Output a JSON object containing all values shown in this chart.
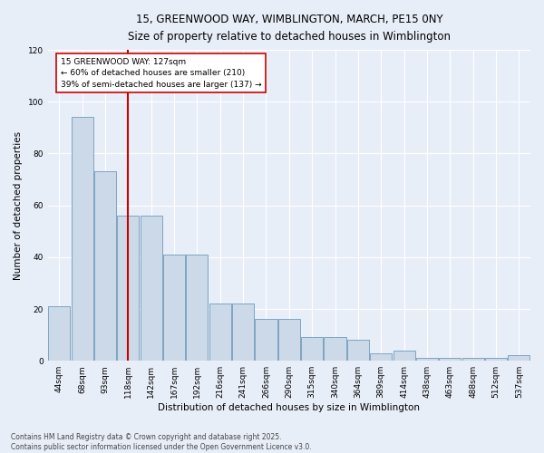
{
  "title_line1": "15, GREENWOOD WAY, WIMBLINGTON, MARCH, PE15 0NY",
  "title_line2": "Size of property relative to detached houses in Wimblington",
  "xlabel": "Distribution of detached houses by size in Wimblington",
  "ylabel": "Number of detached properties",
  "bar_color": "#ccd9e8",
  "bar_edge_color": "#7099bb",
  "categories": [
    "44sqm",
    "68sqm",
    "93sqm",
    "118sqm",
    "142sqm",
    "167sqm",
    "192sqm",
    "216sqm",
    "241sqm",
    "266sqm",
    "290sqm",
    "315sqm",
    "340sqm",
    "364sqm",
    "389sqm",
    "414sqm",
    "438sqm",
    "463sqm",
    "488sqm",
    "512sqm",
    "537sqm"
  ],
  "bar_heights": [
    21,
    94,
    73,
    56,
    56,
    41,
    41,
    22,
    22,
    16,
    16,
    9,
    9,
    8,
    3,
    4,
    1,
    1,
    1,
    1,
    2
  ],
  "ylim": [
    0,
    120
  ],
  "yticks": [
    0,
    20,
    40,
    60,
    80,
    100,
    120
  ],
  "property_line_color": "#cc0000",
  "annotation_text": "15 GREENWOOD WAY: 127sqm\n← 60% of detached houses are smaller (210)\n39% of semi-detached houses are larger (137) →",
  "footer_text": "Contains HM Land Registry data © Crown copyright and database right 2025.\nContains public sector information licensed under the Open Government Licence v3.0.",
  "background_color": "#e8eef8",
  "grid_color": "white"
}
